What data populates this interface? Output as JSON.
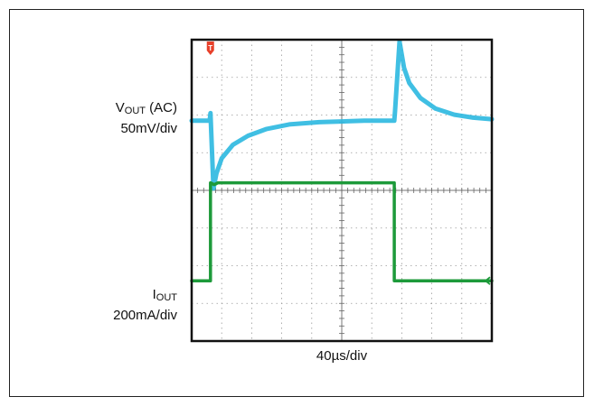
{
  "chart_data": {
    "type": "line",
    "title": "",
    "xlabel": "40µs/div",
    "x_divisions": 10,
    "y_divisions": 8,
    "x_unit": "µs",
    "x_per_div": 40,
    "xlim": [
      0,
      400
    ],
    "grid": true,
    "trigger_marker": {
      "label": "T",
      "x": 25,
      "color": "#e8402a"
    },
    "channels": [
      {
        "name_main": "V",
        "name_sub": "OUT",
        "name_suffix": " (AC)",
        "scale": "50mV/div",
        "unit": "mV",
        "color": "#2bb8e0",
        "y_div_center": 2.15,
        "points": [
          [
            0,
            0
          ],
          [
            24,
            0
          ],
          [
            25,
            10
          ],
          [
            29,
            -90
          ],
          [
            33,
            -70
          ],
          [
            40,
            -50
          ],
          [
            55,
            -32
          ],
          [
            75,
            -20
          ],
          [
            100,
            -11
          ],
          [
            130,
            -5
          ],
          [
            170,
            -2
          ],
          [
            230,
            0
          ],
          [
            270,
            0
          ],
          [
            271,
            12
          ],
          [
            277,
            105
          ],
          [
            283,
            70
          ],
          [
            290,
            50
          ],
          [
            305,
            30
          ],
          [
            325,
            16
          ],
          [
            350,
            8
          ],
          [
            375,
            4
          ],
          [
            400,
            2
          ]
        ]
      },
      {
        "name_main": "I",
        "name_sub": "OUT",
        "name_suffix": "",
        "scale": "200mA/div",
        "unit": "mA",
        "color": "#1d9a3a",
        "y_div_center": 6.4,
        "points": [
          [
            0,
            0
          ],
          [
            25,
            0
          ],
          [
            25,
            520
          ],
          [
            30,
            510
          ],
          [
            35,
            520
          ],
          [
            270,
            520
          ],
          [
            270,
            0
          ],
          [
            400,
            0
          ]
        ]
      }
    ]
  },
  "colors": {
    "screen_bg": "#ffffff",
    "grid": "#9a9a9a",
    "border": "#111111"
  }
}
